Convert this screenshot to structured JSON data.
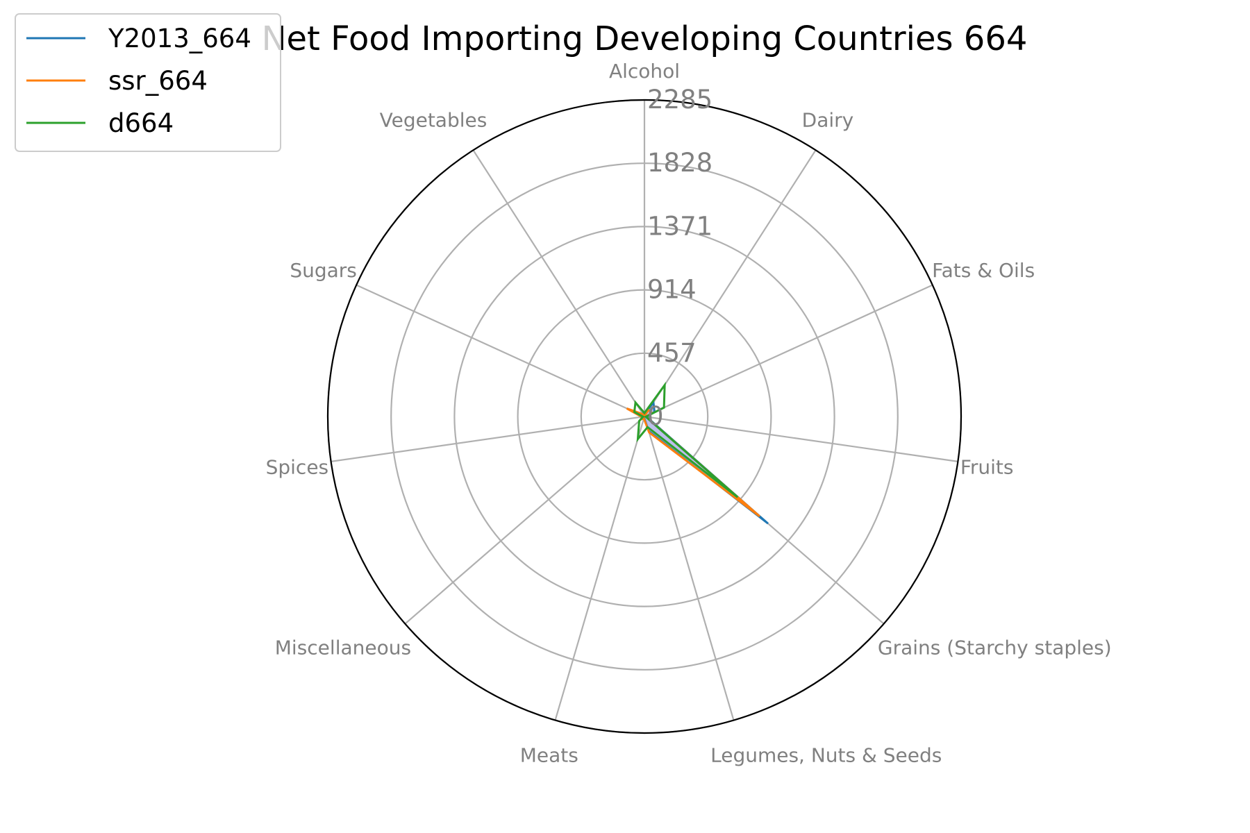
{
  "chart_data": {
    "type": "radar",
    "title": "Net Food Importing Developing Countries 664",
    "categories": [
      "Alcohol",
      "Dairy",
      "Fats & Oils",
      "Fruits",
      "Grains (Starchy staples)",
      "Legumes, Nuts & Seeds",
      "Meats",
      "Miscellaneous",
      "Spices",
      "Sugars",
      "Vegetables"
    ],
    "radial_ticks": [
      "0",
      "457",
      "914",
      "1371",
      "1828",
      "2285"
    ],
    "rlim": [
      0,
      2285
    ],
    "grid": true,
    "legend_position": "top-left",
    "series": [
      {
        "name": "Y2013_664",
        "color": "#1f77b4",
        "values": [
          20,
          120,
          80,
          15,
          1180,
          110,
          10,
          20,
          20,
          30,
          25
        ]
      },
      {
        "name": "ssr_664",
        "color": "#ff7f0e",
        "values": [
          5,
          55,
          60,
          10,
          1100,
          120,
          15,
          30,
          20,
          140,
          20
        ]
      },
      {
        "name": "d664",
        "color": "#2ca02c",
        "values": [
          25,
          270,
          155,
          10,
          890,
          80,
          170,
          50,
          10,
          80,
          120
        ]
      }
    ],
    "fill_color": "#b0b4e8"
  }
}
